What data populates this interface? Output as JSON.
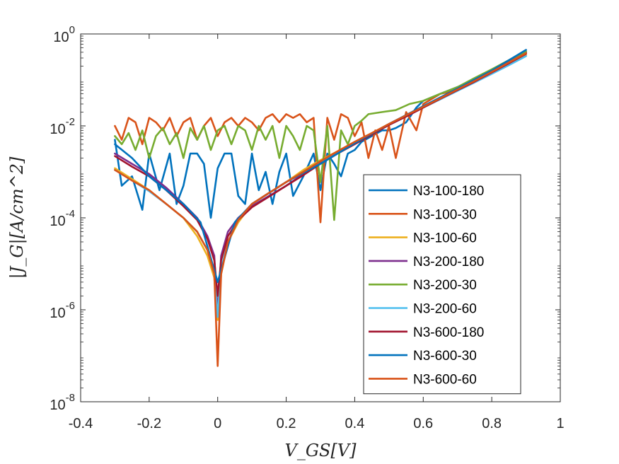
{
  "chart_data": {
    "type": "line",
    "xlabel": "V_GS[V]",
    "ylabel": "|J_G|[A/cm^2]",
    "xlim": [
      -0.4,
      1
    ],
    "ylim": [
      1e-08,
      1
    ],
    "y_scale": "log",
    "x_ticks": [
      -0.4,
      -0.2,
      0,
      0.2,
      0.4,
      0.6,
      0.8,
      1
    ],
    "x_tick_labels": [
      "-0.4",
      "-0.2",
      "0",
      "0.2",
      "0.4",
      "0.6",
      "0.8",
      "1"
    ],
    "y_ticks": [
      {
        "value": 1e-08,
        "base": "10",
        "exp": "-8"
      },
      {
        "value": 1e-06,
        "base": "10",
        "exp": "-6"
      },
      {
        "value": 0.0001,
        "base": "10",
        "exp": "-4"
      },
      {
        "value": 0.01,
        "base": "10",
        "exp": "-2"
      },
      {
        "value": 1,
        "base": "10",
        "exp": "0"
      }
    ],
    "grid": false,
    "box": true,
    "legend_position": "lower-right",
    "series": [
      {
        "name": "N3-100-180",
        "color": "#0072BD",
        "style": "noisy",
        "x": [
          -0.3,
          -0.28,
          -0.25,
          -0.22,
          -0.2,
          -0.17,
          -0.14,
          -0.12,
          -0.1,
          -0.08,
          -0.06,
          -0.04,
          -0.02,
          0,
          0.02,
          0.04,
          0.06,
          0.08,
          0.1,
          0.12,
          0.14,
          0.16,
          0.18,
          0.2,
          0.22,
          0.25,
          0.28,
          0.3,
          0.32,
          0.34,
          0.36,
          0.38,
          0.4,
          0.42,
          0.45,
          0.48,
          0.5,
          0.52,
          0.55,
          0.58,
          0.6,
          0.65,
          0.7,
          0.75,
          0.8,
          0.85,
          0.9
        ],
        "y": [
          0.005,
          0.0005,
          0.0008,
          0.00015,
          0.0025,
          0.0004,
          0.0025,
          0.0002,
          0.0005,
          0.0025,
          0.0025,
          0.0015,
          0.0001,
          0.0012,
          0.0025,
          0.0025,
          0.0003,
          0.0002,
          0.0025,
          0.0004,
          0.001,
          0.0002,
          0.001,
          0.0025,
          0.0003,
          0.0008,
          0.0025,
          0.0004,
          0.0025,
          0.0015,
          0.0008,
          0.0025,
          0.003,
          0.0045,
          0.006,
          0.008,
          0.008,
          0.009,
          0.012,
          0.025,
          0.035,
          0.05,
          0.07,
          0.1,
          0.16,
          0.25,
          0.38
        ]
      },
      {
        "name": "N3-100-30",
        "color": "#D95319",
        "style": "noisy",
        "x": [
          -0.3,
          -0.28,
          -0.26,
          -0.24,
          -0.22,
          -0.2,
          -0.18,
          -0.16,
          -0.14,
          -0.12,
          -0.1,
          -0.08,
          -0.06,
          -0.04,
          -0.02,
          0,
          0.02,
          0.04,
          0.06,
          0.08,
          0.1,
          0.12,
          0.14,
          0.16,
          0.18,
          0.2,
          0.22,
          0.24,
          0.26,
          0.28,
          0.3,
          0.32,
          0.34,
          0.36,
          0.38,
          0.4,
          0.42,
          0.44,
          0.46,
          0.48,
          0.5,
          0.52,
          0.55,
          0.58,
          0.6,
          0.65,
          0.7,
          0.75,
          0.8,
          0.85,
          0.9
        ],
        "y": [
          0.01,
          0.005,
          0.015,
          0.012,
          0.004,
          0.015,
          0.012,
          0.008,
          0.015,
          0.006,
          0.012,
          0.015,
          0.005,
          0.01,
          0.015,
          0.006,
          0.012,
          0.015,
          0.01,
          0.015,
          0.012,
          0.008,
          0.015,
          0.018,
          0.012,
          0.018,
          0.015,
          0.018,
          0.012,
          0.015,
          8e-05,
          0.015,
          0.005,
          0.018,
          0.015,
          0.006,
          0.012,
          0.002,
          0.008,
          0.003,
          0.01,
          0.002,
          0.02,
          0.008,
          0.03,
          0.05,
          0.06,
          0.09,
          0.15,
          0.22,
          0.4
        ]
      },
      {
        "name": "N3-100-60",
        "color": "#EDB120",
        "style": "smooth",
        "x": [
          -0.3,
          -0.25,
          -0.2,
          -0.15,
          -0.1,
          -0.06,
          -0.03,
          -0.01,
          0,
          0.01,
          0.03,
          0.06,
          0.1,
          0.15,
          0.2,
          0.25,
          0.3,
          0.35,
          0.4,
          0.45,
          0.5,
          0.55,
          0.6,
          0.65,
          0.7,
          0.75,
          0.8,
          0.85,
          0.9
        ],
        "y": [
          0.0012,
          0.0007,
          0.0004,
          0.0002,
          0.0001,
          4e-05,
          1.5e-05,
          5e-06,
          6e-07,
          6e-06,
          3e-05,
          8e-05,
          0.0002,
          0.00035,
          0.0006,
          0.0011,
          0.0018,
          0.0028,
          0.0045,
          0.007,
          0.011,
          0.017,
          0.026,
          0.04,
          0.06,
          0.09,
          0.14,
          0.22,
          0.34
        ]
      },
      {
        "name": "N3-200-180",
        "color": "#7E2F8E",
        "style": "smooth",
        "x": [
          -0.3,
          -0.25,
          -0.2,
          -0.15,
          -0.1,
          -0.06,
          -0.03,
          -0.01,
          0,
          0.01,
          0.03,
          0.06,
          0.1,
          0.15,
          0.2,
          0.25,
          0.3,
          0.35,
          0.4,
          0.45,
          0.5,
          0.55,
          0.6,
          0.65,
          0.7,
          0.75,
          0.8,
          0.85,
          0.9
        ],
        "y": [
          0.0025,
          0.0015,
          0.0009,
          0.00045,
          0.0002,
          0.0001,
          4e-05,
          1.5e-05,
          8e-07,
          1.5e-05,
          5e-05,
          0.0001,
          0.00018,
          0.0003,
          0.0005,
          0.0009,
          0.0016,
          0.0026,
          0.0042,
          0.0068,
          0.011,
          0.017,
          0.026,
          0.04,
          0.062,
          0.095,
          0.15,
          0.24,
          0.4
        ]
      },
      {
        "name": "N3-200-30",
        "color": "#77AC30",
        "style": "noisy",
        "x": [
          -0.3,
          -0.28,
          -0.26,
          -0.24,
          -0.22,
          -0.2,
          -0.18,
          -0.16,
          -0.14,
          -0.12,
          -0.1,
          -0.08,
          -0.06,
          -0.04,
          -0.02,
          0,
          0.02,
          0.04,
          0.06,
          0.08,
          0.1,
          0.12,
          0.14,
          0.16,
          0.18,
          0.2,
          0.22,
          0.24,
          0.26,
          0.28,
          0.3,
          0.32,
          0.34,
          0.36,
          0.38,
          0.4,
          0.42,
          0.44,
          0.48,
          0.52,
          0.56,
          0.6,
          0.65,
          0.7,
          0.75,
          0.8,
          0.85,
          0.9
        ],
        "y": [
          0.006,
          0.004,
          0.007,
          0.003,
          0.008,
          0.002,
          0.006,
          0.009,
          0.004,
          0.007,
          0.002,
          0.009,
          0.005,
          0.01,
          0.003,
          0.008,
          0.01,
          0.004,
          0.01,
          0.008,
          0.003,
          0.01,
          0.005,
          0.01,
          0.002,
          0.01,
          0.006,
          0.003,
          0.01,
          0.008,
          0.0006,
          0.01,
          9e-05,
          0.008,
          0.004,
          0.01,
          0.013,
          0.018,
          0.02,
          0.022,
          0.03,
          0.035,
          0.05,
          0.07,
          0.11,
          0.17,
          0.27,
          0.42
        ]
      },
      {
        "name": "N3-200-60",
        "color": "#4DBEEE",
        "style": "smooth",
        "x": [
          -0.3,
          -0.25,
          -0.2,
          -0.15,
          -0.1,
          -0.06,
          -0.03,
          -0.01,
          0,
          0.01,
          0.03,
          0.06,
          0.1,
          0.15,
          0.2,
          0.25,
          0.3,
          0.35,
          0.4,
          0.45,
          0.5,
          0.55,
          0.6,
          0.65,
          0.7,
          0.75,
          0.8,
          0.85,
          0.9
        ],
        "y": [
          0.0011,
          0.00065,
          0.00038,
          0.0002,
          0.0001,
          5e-05,
          2e-05,
          6e-06,
          7e-07,
          8e-06,
          3e-05,
          9e-05,
          0.0002,
          0.00035,
          0.0006,
          0.001,
          0.0017,
          0.0027,
          0.0043,
          0.0068,
          0.0105,
          0.016,
          0.025,
          0.038,
          0.058,
          0.088,
          0.135,
          0.21,
          0.33
        ]
      },
      {
        "name": "N3-600-180",
        "color": "#A2142F",
        "style": "smooth",
        "x": [
          -0.3,
          -0.25,
          -0.2,
          -0.15,
          -0.1,
          -0.06,
          -0.03,
          -0.01,
          0,
          0.01,
          0.03,
          0.06,
          0.1,
          0.15,
          0.2,
          0.25,
          0.3,
          0.35,
          0.4,
          0.45,
          0.5,
          0.55,
          0.6,
          0.65,
          0.7,
          0.75,
          0.8,
          0.85,
          0.9
        ],
        "y": [
          0.0022,
          0.0013,
          0.0008,
          0.0004,
          0.00018,
          9e-05,
          3.5e-05,
          1.2e-05,
          2e-06,
          1.2e-05,
          4e-05,
          9e-05,
          0.00017,
          0.00029,
          0.0005,
          0.00085,
          0.0015,
          0.0025,
          0.004,
          0.0065,
          0.0105,
          0.016,
          0.025,
          0.039,
          0.06,
          0.092,
          0.145,
          0.23,
          0.37
        ]
      },
      {
        "name": "N3-600-30",
        "color": "#0072BD",
        "style": "smooth",
        "x": [
          -0.3,
          -0.25,
          -0.2,
          -0.15,
          -0.1,
          -0.05,
          0,
          0.05,
          0.1,
          0.2,
          0.3,
          0.4,
          0.5,
          0.6,
          0.7,
          0.8,
          0.9
        ],
        "y": [
          0.004,
          0.002,
          0.0008,
          0.0004,
          0.0002,
          8e-05,
          4e-06,
          8e-05,
          0.0002,
          0.0006,
          0.0015,
          0.0042,
          0.011,
          0.027,
          0.065,
          0.16,
          0.45
        ]
      },
      {
        "name": "N3-600-60",
        "color": "#D95319",
        "style": "smooth",
        "x": [
          -0.3,
          -0.25,
          -0.2,
          -0.15,
          -0.1,
          -0.06,
          -0.03,
          -0.01,
          0,
          0.01,
          0.03,
          0.06,
          0.1,
          0.15,
          0.2,
          0.25,
          0.3,
          0.35,
          0.4,
          0.45,
          0.5,
          0.55,
          0.6,
          0.65,
          0.7,
          0.75,
          0.8,
          0.85,
          0.9
        ],
        "y": [
          0.0011,
          0.00065,
          0.0004,
          0.0002,
          0.0001,
          5e-05,
          2e-05,
          6e-06,
          6e-08,
          6e-06,
          3e-05,
          9e-05,
          0.0002,
          0.00035,
          0.0006,
          0.001,
          0.0017,
          0.0028,
          0.0045,
          0.007,
          0.011,
          0.017,
          0.026,
          0.04,
          0.062,
          0.095,
          0.15,
          0.24,
          0.38
        ]
      }
    ]
  }
}
